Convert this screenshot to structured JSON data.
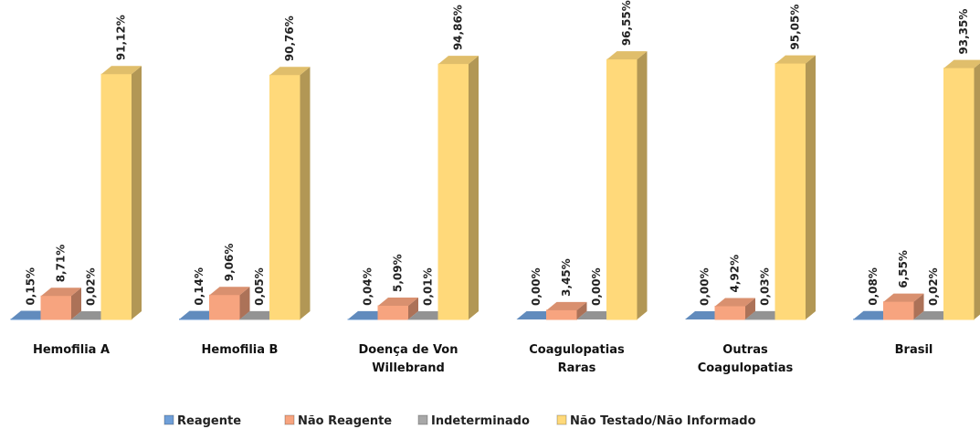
{
  "chart_data": {
    "type": "bar3d",
    "categories": [
      "Hemofilia A",
      "Hemofilia B",
      "Doença de Von Willebrand",
      "Coagulopatias Raras",
      "Outras Coagulopatias",
      "Brasil"
    ],
    "series": [
      {
        "name": "Reagente",
        "color": "#6f9fd8",
        "values": [
          0.15,
          0.14,
          0.04,
          0.0,
          0.0,
          0.08
        ],
        "value_labels": [
          "0,15%",
          "0,14%",
          "0,04%",
          "0,00%",
          "0,00%",
          "0,08%"
        ]
      },
      {
        "name": "Não Reagente",
        "color": "#f7a47f",
        "values": [
          8.71,
          9.06,
          5.09,
          3.45,
          4.92,
          6.55
        ],
        "value_labels": [
          "8,71%",
          "9,06%",
          "5,09%",
          "3,45%",
          "4,92%",
          "6,55%"
        ]
      },
      {
        "name": "Indeterminado",
        "color": "#a8a8a8",
        "values": [
          0.02,
          0.05,
          0.01,
          0.0,
          0.03,
          0.02
        ],
        "value_labels": [
          "0,02%",
          "0,05%",
          "0,01%",
          "0,00%",
          "0,03%",
          "0,02%"
        ]
      },
      {
        "name": "Não Testado/Não Informado",
        "color": "#ffd97a",
        "values": [
          91.12,
          90.76,
          94.86,
          96.55,
          95.05,
          93.35
        ],
        "value_labels": [
          "91,12%",
          "90,76%",
          "94,86%",
          "96,55%",
          "95,05%",
          "93,35%"
        ]
      }
    ]
  }
}
